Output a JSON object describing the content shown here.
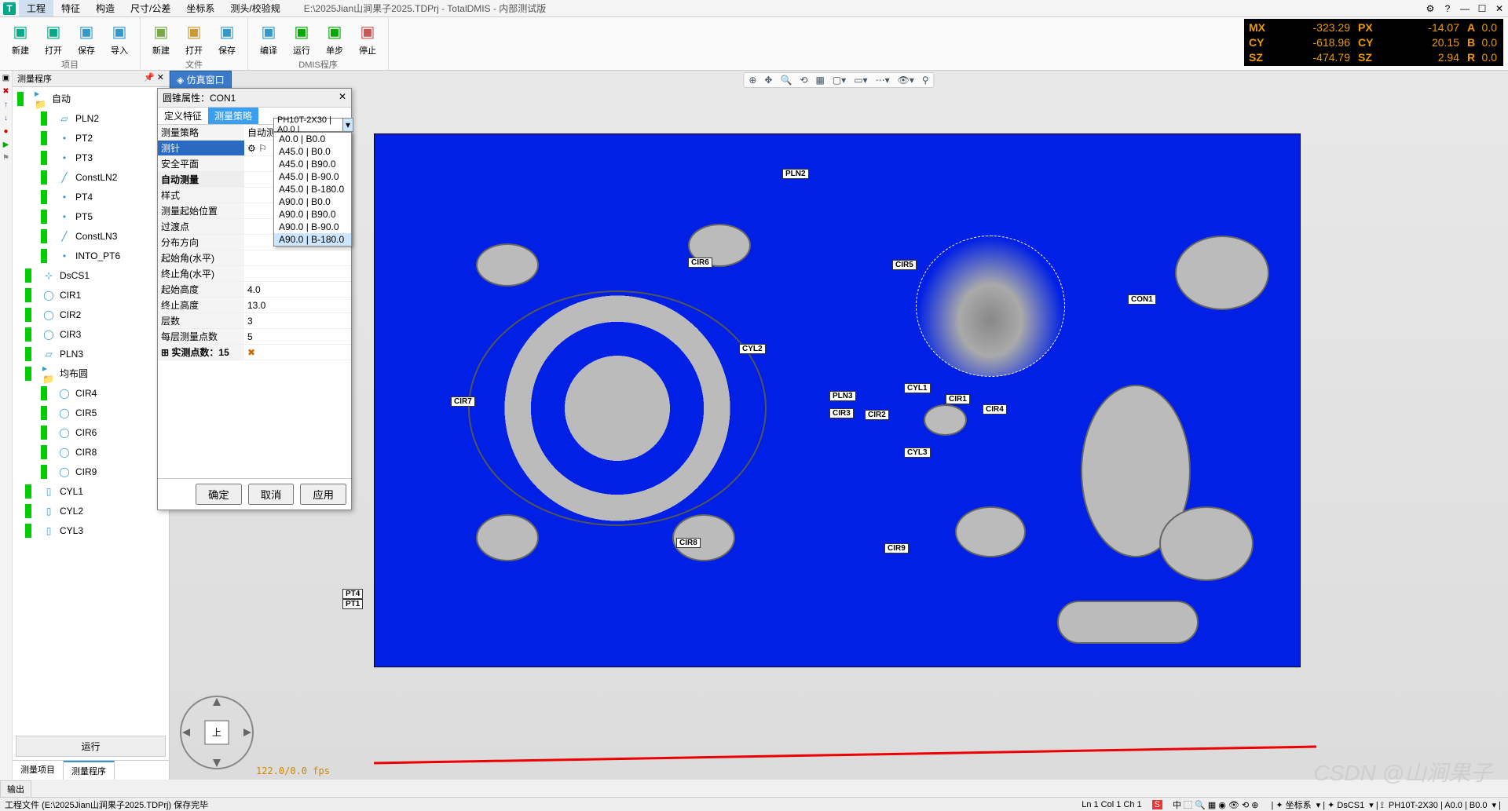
{
  "title": {
    "filepath": "E:\\2025Jian山涧果子2025.TDPrj - TotalDMIS - 内部测试版"
  },
  "menus": [
    "工程",
    "特征",
    "构造",
    "尺寸/公差",
    "坐标系",
    "测头/校验规"
  ],
  "ribbon": {
    "groups": [
      {
        "name": "项目",
        "btns": [
          {
            "l": "新建",
            "c": "#0a8"
          },
          {
            "l": "打开",
            "c": "#0a8"
          },
          {
            "l": "保存",
            "c": "#39c"
          },
          {
            "l": "导入",
            "c": "#39c"
          }
        ]
      },
      {
        "name": "文件",
        "btns": [
          {
            "l": "新建",
            "c": "#7a4"
          },
          {
            "l": "打开",
            "c": "#c93"
          },
          {
            "l": "保存",
            "c": "#39c"
          }
        ]
      },
      {
        "name": "DMIS程序",
        "btns": [
          {
            "l": "编译",
            "c": "#39c"
          },
          {
            "l": "运行",
            "c": "#0a0"
          },
          {
            "l": "单步",
            "c": "#0a0"
          },
          {
            "l": "停止",
            "c": "#c55"
          }
        ]
      }
    ]
  },
  "coords": [
    [
      "MX",
      "-323.29",
      "PX",
      "-14.07",
      "A",
      "0.0"
    ],
    [
      "CY",
      "-618.96",
      "CY",
      "20.15",
      "B",
      "0.0"
    ],
    [
      "SZ",
      "-474.79",
      "SZ",
      "2.94",
      "R",
      "0.0"
    ]
  ],
  "leftPanel": {
    "title": "测量程序",
    "run": "运行",
    "tabs": [
      "测量项目",
      "测量程序"
    ],
    "tree": [
      {
        "t": "自动",
        "lv": 0,
        "ic": "folder"
      },
      {
        "t": "PLN2",
        "lv": 2,
        "ic": "plane"
      },
      {
        "t": "PT2",
        "lv": 2,
        "ic": "point"
      },
      {
        "t": "PT3",
        "lv": 2,
        "ic": "point"
      },
      {
        "t": "ConstLN2",
        "lv": 2,
        "ic": "line"
      },
      {
        "t": "PT4",
        "lv": 2,
        "ic": "point"
      },
      {
        "t": "PT5",
        "lv": 2,
        "ic": "point"
      },
      {
        "t": "ConstLN3",
        "lv": 2,
        "ic": "line"
      },
      {
        "t": "INTO_PT6",
        "lv": 2,
        "ic": "point"
      },
      {
        "t": "DsCS1",
        "lv": 1,
        "ic": "cs"
      },
      {
        "t": "CIR1",
        "lv": 1,
        "ic": "circ"
      },
      {
        "t": "CIR2",
        "lv": 1,
        "ic": "circ"
      },
      {
        "t": "CIR3",
        "lv": 1,
        "ic": "circ"
      },
      {
        "t": "PLN3",
        "lv": 1,
        "ic": "plane"
      },
      {
        "t": "均布圆",
        "lv": 1,
        "ic": "folder"
      },
      {
        "t": "CIR4",
        "lv": 2,
        "ic": "circ"
      },
      {
        "t": "CIR5",
        "lv": 2,
        "ic": "circ"
      },
      {
        "t": "CIR6",
        "lv": 2,
        "ic": "circ"
      },
      {
        "t": "CIR8",
        "lv": 2,
        "ic": "circ"
      },
      {
        "t": "CIR9",
        "lv": 2,
        "ic": "circ"
      },
      {
        "t": "CYL1",
        "lv": 1,
        "ic": "cyl"
      },
      {
        "t": "CYL2",
        "lv": 1,
        "ic": "cyl"
      },
      {
        "t": "CYL3",
        "lv": 1,
        "ic": "cyl"
      }
    ]
  },
  "dialog": {
    "title": "圆锥属性：CON1",
    "tabs": [
      "定义特征",
      "测量策略"
    ],
    "strategy": "测量策略",
    "strategy_v": "自动测量",
    "probe": "测针",
    "probe_v": "PH10T-2X30 | A0.0 |",
    "safeplane": "安全平面",
    "autogrp": "自动测量",
    "rows": [
      {
        "k": "样式",
        "v": ""
      },
      {
        "k": "测量起始位置",
        "v": ""
      },
      {
        "k": "过渡点",
        "v": ""
      },
      {
        "k": "分布方向",
        "v": ""
      },
      {
        "k": "起始角(水平)",
        "v": ""
      },
      {
        "k": "终止角(水平)",
        "v": ""
      },
      {
        "k": "起始高度",
        "v": "4.0"
      },
      {
        "k": "终止高度",
        "v": "13.0"
      },
      {
        "k": "层数",
        "v": "3"
      },
      {
        "k": "每层测量点数",
        "v": "5"
      }
    ],
    "actual": "实测点数：15",
    "ok": "确定",
    "cancel": "取消",
    "apply": "应用"
  },
  "dropdown": [
    "A0.0 | B0.0",
    "A45.0 | B0.0",
    "A45.0 | B90.0",
    "A45.0 | B-90.0",
    "A45.0 | B-180.0",
    "A90.0 | B0.0",
    "A90.0 | B90.0",
    "A90.0 | B-90.0",
    "A90.0 | B-180.0"
  ],
  "labels3d": [
    "PLN2",
    "CIR6",
    "CIR5",
    "CON1",
    "CYL2",
    "CIR7",
    "PLN3",
    "CYL1",
    "CIR1",
    "CIR4",
    "CIR3",
    "CIR2",
    "CYL3",
    "CIR8",
    "CIR9",
    "PT4",
    "PT1"
  ],
  "simTab": "仿真窗口",
  "fps": "122.0/0.0 fps",
  "status": {
    "file": "工程文件 (E:\\2025Jian山涧果子2025.TDPrj) 保存完毕",
    "output": "输出",
    "pos": "Ln 1   Col 1   Ch 1",
    "cs": "坐标系",
    "dscs": "DsCS1",
    "probe": "PH10T-2X30 | A0.0 | B0.0"
  },
  "watermark": "CSDN @山涧果子"
}
